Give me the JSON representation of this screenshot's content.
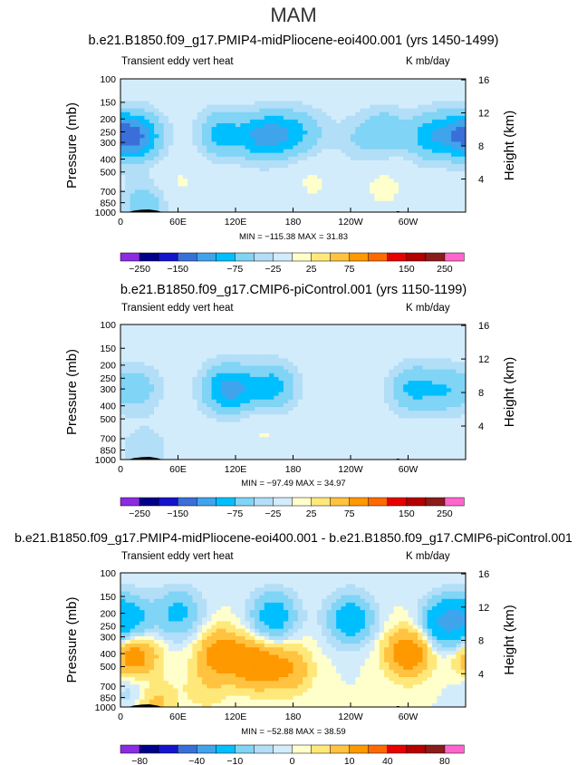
{
  "figure": {
    "season": "MAM",
    "panels": [
      {
        "id": "p1",
        "title": "b.e21.B1850.f09_g17.PMIP4-midPliocene-eoi400.001 (yrs 1450-1499)",
        "left_label": "Transient eddy vert heat",
        "right_label": "K mb/day",
        "min_max": "MIN = −115.38   MAX =  31.83",
        "colorbar": [
          "−250",
          "−150",
          "−75",
          "−25",
          "25",
          "75",
          "150",
          "250"
        ]
      },
      {
        "id": "p2",
        "title": "b.e21.B1850.f09_g17.CMIP6-piControl.001 (yrs 1150-1199)",
        "left_label": "Transient eddy vert heat",
        "right_label": "K mb/day",
        "min_max": "MIN = −97.49   MAX =  34.97",
        "colorbar": [
          "−250",
          "−150",
          "−75",
          "−25",
          "25",
          "75",
          "150",
          "250"
        ]
      },
      {
        "id": "p3",
        "title": "b.e21.B1850.f09_g17.PMIP4-midPliocene-eoi400.001 - b.e21.B1850.f09_g17.CMIP6-piControl.001",
        "left_label": "Transient eddy vert heat",
        "right_label": "K mb/day",
        "min_max": "MIN = −52.88   MAX =  38.59",
        "colorbar": [
          "−80",
          "−40",
          "−10",
          "0",
          "10",
          "40",
          "80"
        ]
      }
    ]
  },
  "chart_data": [
    {
      "type": "heatmap",
      "title": "b.e21.B1850.f09_g17.PMIP4-midPliocene-eoi400.001 (yrs 1450-1499)",
      "subtitle": "MAM",
      "xlabel": "",
      "ylabel": "Pressure (mb)",
      "y2label": "Height (km)",
      "xticks": [
        "0",
        "60E",
        "120E",
        "180",
        "120W",
        "60W"
      ],
      "xtick_values": [
        0,
        60,
        120,
        180,
        240,
        300
      ],
      "xlim": [
        0,
        360
      ],
      "yticks": [
        "100",
        "150",
        "200",
        "250",
        "300",
        "400",
        "500",
        "700",
        "850",
        "1000"
      ],
      "ytick_values": [
        100,
        150,
        200,
        250,
        300,
        400,
        500,
        700,
        850,
        1000
      ],
      "ylim": [
        1000,
        100
      ],
      "y2ticks": [
        "4",
        "8",
        "12",
        "16"
      ],
      "y2tick_values": [
        4,
        8,
        12,
        16
      ],
      "units": "K mb/day",
      "min": -115.38,
      "max": 31.83,
      "levels": [
        -250,
        -200,
        -150,
        -100,
        -75,
        -50,
        -25,
        -10,
        10,
        25,
        50,
        75,
        100,
        150,
        200,
        250
      ],
      "colors": [
        "#8B2BE2",
        "#00008B",
        "#1414CD",
        "#3A6FD9",
        "#3FA4EC",
        "#00BFFF",
        "#80D4F5",
        "#B2DEF7",
        "#D3ECFB",
        "#FFFFCC",
        "#FFE87A",
        "#FFC340",
        "#FF9900",
        "#FF6A00",
        "#E80000",
        "#B40000",
        "#8B1C1C",
        "#FF66CC"
      ],
      "features": [
        {
          "lon": 5,
          "p": 270,
          "value": -80
        },
        {
          "lon": 25,
          "p": 270,
          "value": -55
        },
        {
          "lon": 105,
          "p": 260,
          "value": -60
        },
        {
          "lon": 145,
          "p": 270,
          "value": -70
        },
        {
          "lon": 170,
          "p": 260,
          "value": -55
        },
        {
          "lon": 195,
          "p": 250,
          "value": -30
        },
        {
          "lon": 245,
          "p": 280,
          "value": -20
        },
        {
          "lon": 275,
          "p": 250,
          "value": -45
        },
        {
          "lon": 320,
          "p": 270,
          "value": -55
        },
        {
          "lon": 345,
          "p": 260,
          "value": -45
        },
        {
          "lon": 60,
          "p": 600,
          "value": 12
        },
        {
          "lon": 200,
          "p": 600,
          "value": 12
        },
        {
          "lon": 275,
          "p": 650,
          "value": 15
        },
        {
          "lon": 25,
          "p": 880,
          "value": -40
        }
      ]
    },
    {
      "type": "heatmap",
      "title": "b.e21.B1850.f09_g17.CMIP6-piControl.001 (yrs 1150-1199)",
      "subtitle": "MAM",
      "xlabel": "",
      "ylabel": "Pressure (mb)",
      "y2label": "Height (km)",
      "xticks": [
        "0",
        "60E",
        "120E",
        "180",
        "120W",
        "60W"
      ],
      "xtick_values": [
        0,
        60,
        120,
        180,
        240,
        300
      ],
      "xlim": [
        0,
        360
      ],
      "yticks": [
        "100",
        "150",
        "200",
        "250",
        "300",
        "400",
        "500",
        "700",
        "850",
        "1000"
      ],
      "ytick_values": [
        100,
        150,
        200,
        250,
        300,
        400,
        500,
        700,
        850,
        1000
      ],
      "ylim": [
        1000,
        100
      ],
      "y2ticks": [
        "4",
        "8",
        "12",
        "16"
      ],
      "y2tick_values": [
        4,
        8,
        12,
        16
      ],
      "units": "K mb/day",
      "min": -97.49,
      "max": 34.97,
      "levels": [
        -250,
        -200,
        -150,
        -100,
        -75,
        -50,
        -25,
        -10,
        10,
        25,
        50,
        75,
        100,
        150,
        200,
        250
      ],
      "colors": [
        "#8B2BE2",
        "#00008B",
        "#1414CD",
        "#3A6FD9",
        "#3FA4EC",
        "#00BFFF",
        "#80D4F5",
        "#B2DEF7",
        "#D3ECFB",
        "#FFFFCC",
        "#FFE87A",
        "#FFC340",
        "#FF9900",
        "#FF6A00",
        "#E80000",
        "#B40000",
        "#8B1C1C",
        "#FF66CC"
      ],
      "features": [
        {
          "lon": 20,
          "p": 300,
          "value": -35
        },
        {
          "lon": 105,
          "p": 300,
          "value": -55
        },
        {
          "lon": 125,
          "p": 300,
          "value": -50
        },
        {
          "lon": 160,
          "p": 290,
          "value": -60
        },
        {
          "lon": 245,
          "p": 300,
          "value": -10
        },
        {
          "lon": 305,
          "p": 300,
          "value": -55
        },
        {
          "lon": 340,
          "p": 300,
          "value": -45
        },
        {
          "lon": 150,
          "p": 600,
          "value": 12
        },
        {
          "lon": 25,
          "p": 880,
          "value": -25
        }
      ]
    },
    {
      "type": "heatmap",
      "title": "b.e21.B1850.f09_g17.PMIP4-midPliocene-eoi400.001 - b.e21.B1850.f09_g17.CMIP6-piControl.001",
      "subtitle": "MAM",
      "xlabel": "",
      "ylabel": "Pressure (mb)",
      "y2label": "Height (km)",
      "xticks": [
        "0",
        "60E",
        "120E",
        "180",
        "120W",
        "60W"
      ],
      "xtick_values": [
        0,
        60,
        120,
        180,
        240,
        300
      ],
      "xlim": [
        0,
        360
      ],
      "yticks": [
        "100",
        "150",
        "200",
        "250",
        "300",
        "400",
        "500",
        "700",
        "850",
        "1000"
      ],
      "ytick_values": [
        100,
        150,
        200,
        250,
        300,
        400,
        500,
        700,
        850,
        1000
      ],
      "ylim": [
        1000,
        100
      ],
      "y2ticks": [
        "4",
        "8",
        "12",
        "16"
      ],
      "y2tick_values": [
        4,
        8,
        12,
        16
      ],
      "units": "K mb/day",
      "min": -52.88,
      "max": 38.59,
      "levels": [
        -80,
        -60,
        -40,
        -20,
        -10,
        -5,
        -2,
        0,
        2,
        5,
        10,
        20,
        40,
        60,
        80
      ],
      "colors": [
        "#8B2BE2",
        "#00008B",
        "#1414CD",
        "#3A6FD9",
        "#3FA4EC",
        "#00BFFF",
        "#80D4F5",
        "#B2DEF7",
        "#D3ECFB",
        "#FFFFCC",
        "#FFE87A",
        "#FFC340",
        "#FF9900",
        "#FF6A00",
        "#E80000",
        "#B40000",
        "#8B1C1C",
        "#FF66CC"
      ],
      "features": [
        {
          "lon": 10,
          "p": 220,
          "value": -14
        },
        {
          "lon": 60,
          "p": 200,
          "value": -12
        },
        {
          "lon": 160,
          "p": 210,
          "value": -15
        },
        {
          "lon": 240,
          "p": 220,
          "value": -16
        },
        {
          "lon": 340,
          "p": 230,
          "value": -22
        },
        {
          "lon": 15,
          "p": 420,
          "value": 15
        },
        {
          "lon": 105,
          "p": 400,
          "value": 14
        },
        {
          "lon": 140,
          "p": 480,
          "value": 16
        },
        {
          "lon": 175,
          "p": 520,
          "value": 10
        },
        {
          "lon": 300,
          "p": 400,
          "value": 16
        },
        {
          "lon": 20,
          "p": 780,
          "value": -10
        },
        {
          "lon": 90,
          "p": 700,
          "value": 4
        },
        {
          "lon": 30,
          "p": 900,
          "value": 12
        }
      ]
    }
  ]
}
